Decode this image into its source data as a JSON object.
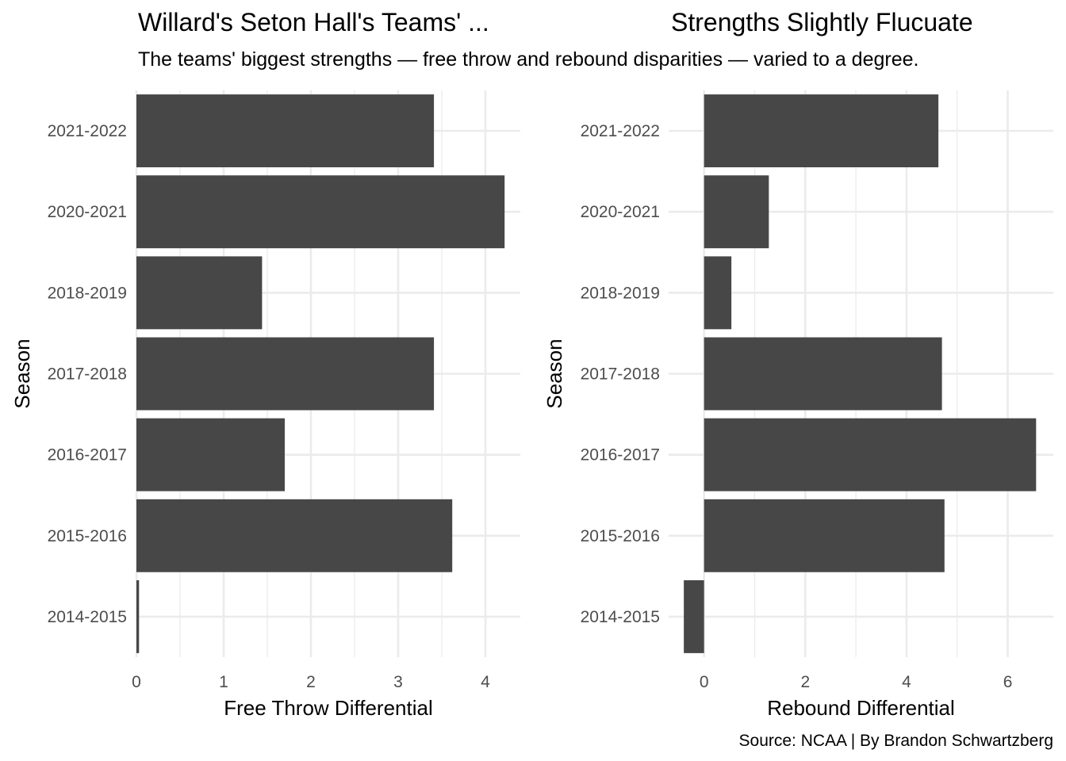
{
  "title_left": "Willard's Seton Hall's Teams' ...",
  "title_right": "Strengths Slightly Flucuate",
  "subtitle": "The teams' biggest strengths — free throw and rebound disparities — varied to a degree.",
  "caption": "Source: NCAA | By Brandon Schwartzberg",
  "colors": {
    "bar": "#474747",
    "grid": "#ebebeb",
    "tick_text": "#4d4d4d",
    "text": "#000000",
    "background": "#ffffff"
  },
  "chart_data": [
    {
      "type": "bar",
      "orientation": "horizontal",
      "categories": [
        "2021-2022",
        "2020-2021",
        "2018-2019",
        "2017-2018",
        "2016-2017",
        "2015-2016",
        "2014-2015"
      ],
      "values": [
        3.41,
        4.22,
        1.44,
        3.41,
        1.7,
        3.62,
        0.03
      ],
      "xlabel": "Free Throw Differential",
      "ylabel": "Season",
      "xlim": [
        0,
        4.4
      ],
      "xticks": [
        "0",
        "1",
        "2",
        "3",
        "4"
      ],
      "grid": true
    },
    {
      "type": "bar",
      "orientation": "horizontal",
      "categories": [
        "2021-2022",
        "2020-2021",
        "2018-2019",
        "2017-2018",
        "2016-2017",
        "2015-2016",
        "2014-2015"
      ],
      "values": [
        4.63,
        1.28,
        0.54,
        4.7,
        6.56,
        4.75,
        -0.4
      ],
      "xlabel": "Rebound Differential",
      "ylabel": "Season",
      "xlim": [
        -0.7,
        6.9
      ],
      "xticks": [
        "0",
        "2",
        "4",
        "6"
      ],
      "grid": true
    }
  ]
}
